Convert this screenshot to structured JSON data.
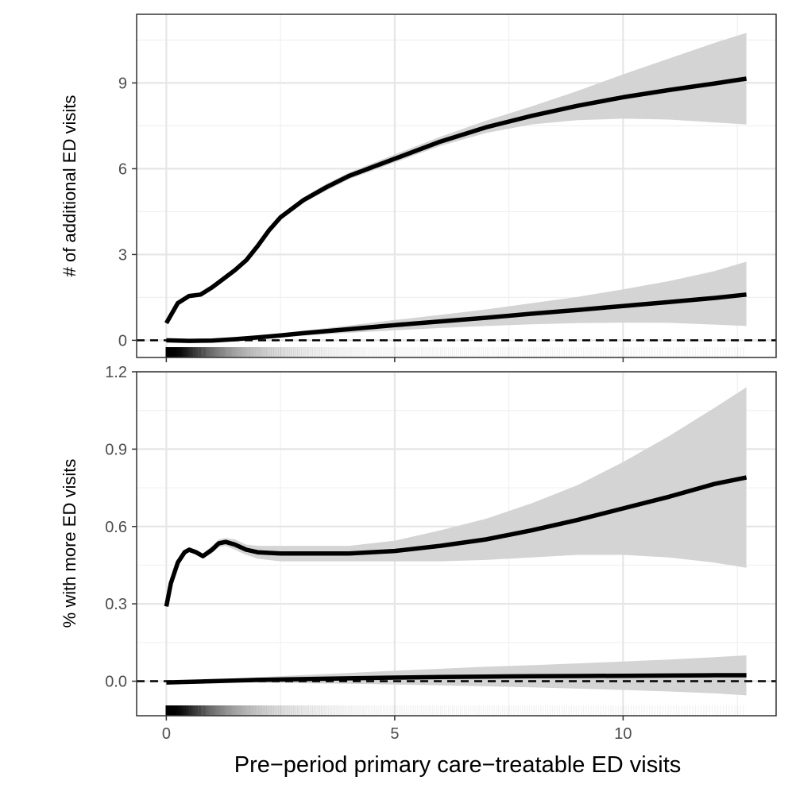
{
  "chart_data": [
    {
      "type": "line",
      "panel": "top",
      "ylabel": "# of additional ED visits",
      "xlim": [
        -0.65,
        13.35
      ],
      "ylim": [
        -0.6,
        11.4
      ],
      "y_ticks": [
        "0",
        "3",
        "6",
        "9"
      ],
      "y_tick_values": [
        0,
        3,
        6,
        9
      ],
      "y_minor_values": [
        1.5,
        4.5,
        7.5,
        10.5
      ],
      "x_tick_values": [
        0,
        5,
        10
      ],
      "x_minor_values": [
        2.5,
        7.5,
        12.5
      ],
      "reference_line": 0,
      "grid": true,
      "series": [
        {
          "x": [
            0,
            0.25,
            0.5,
            0.75,
            1.0,
            1.25,
            1.5,
            1.75,
            2.0,
            2.25,
            2.5,
            3.0,
            3.5,
            4.0,
            5.0,
            6.0,
            7.0,
            8.0,
            9.0,
            10.0,
            11.0,
            12.0,
            12.7
          ],
          "y": [
            0.6,
            1.3,
            1.55,
            1.6,
            1.85,
            2.15,
            2.45,
            2.8,
            3.3,
            3.85,
            4.3,
            4.9,
            5.35,
            5.75,
            6.35,
            6.95,
            7.45,
            7.85,
            8.2,
            8.5,
            8.75,
            8.98,
            9.15
          ],
          "ci_lower": [
            0.55,
            1.24,
            1.5,
            1.55,
            1.8,
            2.1,
            2.4,
            2.74,
            3.24,
            3.78,
            4.2,
            4.8,
            5.23,
            5.63,
            6.22,
            6.8,
            7.25,
            7.55,
            7.7,
            7.75,
            7.72,
            7.62,
            7.55
          ],
          "ci_upper": [
            0.65,
            1.36,
            1.6,
            1.65,
            1.9,
            2.2,
            2.5,
            2.86,
            3.36,
            3.92,
            4.4,
            5.0,
            5.47,
            5.87,
            6.5,
            7.12,
            7.68,
            8.18,
            8.72,
            9.3,
            9.85,
            10.4,
            10.75
          ]
        },
        {
          "x": [
            0,
            0.5,
            1.0,
            1.5,
            2.0,
            2.5,
            3.0,
            4.0,
            5.0,
            6.0,
            7.0,
            8.0,
            9.0,
            10.0,
            11.0,
            12.0,
            12.7
          ],
          "y": [
            0.0,
            -0.02,
            -0.01,
            0.04,
            0.1,
            0.17,
            0.25,
            0.39,
            0.53,
            0.66,
            0.79,
            0.93,
            1.06,
            1.2,
            1.34,
            1.48,
            1.6
          ],
          "ci_lower": [
            -0.02,
            -0.04,
            -0.04,
            0.0,
            0.04,
            0.1,
            0.16,
            0.26,
            0.35,
            0.43,
            0.5,
            0.56,
            0.6,
            0.62,
            0.61,
            0.55,
            0.5
          ],
          "ci_upper": [
            0.02,
            0.0,
            0.02,
            0.08,
            0.16,
            0.24,
            0.34,
            0.52,
            0.71,
            0.89,
            1.08,
            1.3,
            1.52,
            1.78,
            2.07,
            2.42,
            2.75
          ]
        }
      ]
    },
    {
      "type": "line",
      "panel": "bottom",
      "ylabel": "% with more ED visits",
      "xlabel": "Pre−period primary care−treatable ED visits",
      "xlim": [
        -0.65,
        13.35
      ],
      "ylim": [
        -0.134,
        1.2
      ],
      "x_ticks": [
        "0",
        "5",
        "10"
      ],
      "x_tick_values": [
        0,
        5,
        10
      ],
      "x_minor_values": [
        2.5,
        7.5,
        12.5
      ],
      "y_ticks": [
        "0.0",
        "0.3",
        "0.6",
        "0.9",
        "1.2"
      ],
      "y_tick_values": [
        0,
        0.3,
        0.6,
        0.9,
        1.2
      ],
      "y_minor_values": [
        0.15,
        0.45,
        0.75,
        1.05
      ],
      "reference_line": 0,
      "grid": true,
      "series": [
        {
          "x": [
            0,
            0.1,
            0.25,
            0.4,
            0.5,
            0.65,
            0.8,
            1.0,
            1.15,
            1.3,
            1.5,
            1.75,
            2.0,
            2.5,
            3.0,
            4.0,
            5.0,
            6.0,
            7.0,
            8.0,
            9.0,
            10.0,
            11.0,
            12.0,
            12.7
          ],
          "y": [
            0.29,
            0.38,
            0.46,
            0.5,
            0.51,
            0.5,
            0.485,
            0.51,
            0.535,
            0.54,
            0.53,
            0.51,
            0.5,
            0.495,
            0.495,
            0.495,
            0.505,
            0.525,
            0.55,
            0.585,
            0.625,
            0.67,
            0.715,
            0.765,
            0.79
          ],
          "ci_lower": [
            0.28,
            0.37,
            0.45,
            0.49,
            0.5,
            0.49,
            0.475,
            0.495,
            0.52,
            0.525,
            0.51,
            0.49,
            0.475,
            0.465,
            0.465,
            0.465,
            0.465,
            0.465,
            0.47,
            0.48,
            0.49,
            0.49,
            0.48,
            0.46,
            0.44
          ],
          "ci_upper": [
            0.3,
            0.39,
            0.47,
            0.51,
            0.52,
            0.51,
            0.495,
            0.525,
            0.55,
            0.555,
            0.55,
            0.53,
            0.525,
            0.525,
            0.525,
            0.525,
            0.545,
            0.585,
            0.63,
            0.69,
            0.76,
            0.85,
            0.95,
            1.06,
            1.14
          ]
        },
        {
          "x": [
            0,
            1.0,
            2.0,
            3.0,
            4.0,
            5.0,
            6.0,
            7.0,
            8.0,
            9.0,
            10.0,
            11.0,
            12.0,
            12.7
          ],
          "y": [
            -0.005,
            0.0,
            0.005,
            0.008,
            0.011,
            0.014,
            0.016,
            0.018,
            0.019,
            0.02,
            0.021,
            0.022,
            0.023,
            0.023
          ],
          "ci_lower": [
            -0.01,
            -0.005,
            -0.005,
            -0.008,
            -0.01,
            -0.013,
            -0.016,
            -0.02,
            -0.024,
            -0.029,
            -0.034,
            -0.04,
            -0.047,
            -0.055
          ],
          "ci_upper": [
            0.0,
            0.005,
            0.015,
            0.024,
            0.032,
            0.041,
            0.048,
            0.056,
            0.062,
            0.069,
            0.076,
            0.084,
            0.093,
            0.1
          ]
        }
      ]
    }
  ]
}
